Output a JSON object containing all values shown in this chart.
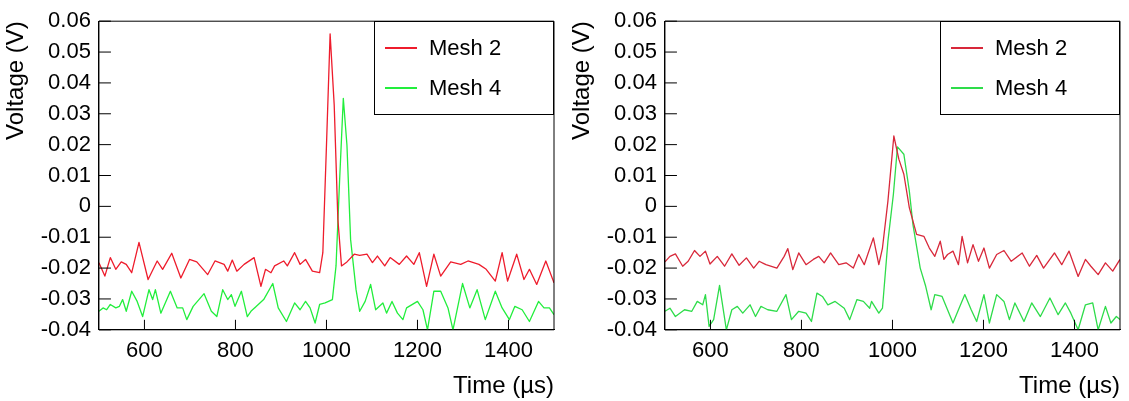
{
  "chart_data": [
    {
      "type": "line",
      "xlabel": "Time (µs)",
      "ylabel": "Voltage (V)",
      "xlim": [
        500,
        1500
      ],
      "xticks": [
        600,
        800,
        1000,
        1200,
        1400
      ],
      "ylim": [
        -0.04,
        0.06
      ],
      "yticks": [
        -0.04,
        -0.03,
        -0.02,
        -0.01,
        0,
        0.01,
        0.02,
        0.03,
        0.04,
        0.05,
        0.06
      ],
      "legend": "top right",
      "marker": "none",
      "series": [
        {
          "name": "Mesh 2",
          "color": "#ee1c2c",
          "x": [
            500,
            513,
            525,
            537,
            549,
            560,
            572,
            588,
            608,
            628,
            640,
            660,
            680,
            699,
            715,
            739,
            755,
            775,
            783,
            793,
            803,
            819,
            841,
            856,
            866,
            878,
            886,
            906,
            914,
            930,
            942,
            954,
            969,
            985,
            992,
            1000,
            1008,
            1017,
            1025,
            1033,
            1045,
            1061,
            1073,
            1089,
            1101,
            1112,
            1128,
            1140,
            1160,
            1176,
            1192,
            1204,
            1220,
            1236,
            1251,
            1273,
            1295,
            1311,
            1335,
            1351,
            1371,
            1386,
            1398,
            1418,
            1434,
            1446,
            1462,
            1482,
            1500
          ],
          "values": [
            -0.0183,
            -0.0226,
            -0.0166,
            -0.0204,
            -0.018,
            -0.0188,
            -0.0215,
            -0.0117,
            -0.0237,
            -0.0177,
            -0.0204,
            -0.0152,
            -0.0232,
            -0.0172,
            -0.018,
            -0.0221,
            -0.0177,
            -0.0188,
            -0.021,
            -0.0174,
            -0.021,
            -0.0188,
            -0.0166,
            -0.0259,
            -0.0204,
            -0.0215,
            -0.0193,
            -0.0177,
            -0.0193,
            -0.015,
            -0.0188,
            -0.0172,
            -0.021,
            -0.0215,
            -0.015,
            0.0198,
            0.0559,
            0.0328,
            -0.0041,
            -0.0193,
            -0.018,
            -0.0155,
            -0.0159,
            -0.0155,
            -0.0182,
            -0.0161,
            -0.0193,
            -0.0166,
            -0.0188,
            -0.0161,
            -0.0188,
            -0.015,
            -0.0259,
            -0.0155,
            -0.0226,
            -0.018,
            -0.0188,
            -0.0177,
            -0.0188,
            -0.0204,
            -0.0242,
            -0.015,
            -0.0242,
            -0.0155,
            -0.0237,
            -0.0204,
            -0.0253,
            -0.0177,
            -0.0248
          ]
        },
        {
          "name": "Mesh 4",
          "color": "#22ee3c",
          "x": [
            500,
            509,
            517,
            525,
            537,
            545,
            552,
            560,
            572,
            584,
            596,
            610,
            618,
            624,
            636,
            657,
            672,
            684,
            693,
            707,
            731,
            747,
            759,
            772,
            783,
            791,
            799,
            813,
            826,
            834,
            846,
            862,
            882,
            894,
            912,
            930,
            942,
            954,
            964,
            975,
            985,
            997,
            1013,
            1021,
            1029,
            1037,
            1045,
            1053,
            1065,
            1073,
            1085,
            1097,
            1108,
            1124,
            1132,
            1144,
            1156,
            1168,
            1176,
            1200,
            1212,
            1222,
            1236,
            1251,
            1267,
            1278,
            1299,
            1315,
            1331,
            1349,
            1371,
            1386,
            1402,
            1414,
            1430,
            1446,
            1466,
            1478,
            1490,
            1500
          ],
          "values": [
            -0.034,
            -0.0329,
            -0.0335,
            -0.0318,
            -0.0329,
            -0.0324,
            -0.0302,
            -0.034,
            -0.0275,
            -0.0308,
            -0.0357,
            -0.027,
            -0.0302,
            -0.027,
            -0.0346,
            -0.0275,
            -0.0329,
            -0.0329,
            -0.0367,
            -0.0324,
            -0.0283,
            -0.034,
            -0.0357,
            -0.027,
            -0.0302,
            -0.0286,
            -0.0324,
            -0.0275,
            -0.0357,
            -0.034,
            -0.0324,
            -0.0302,
            -0.025,
            -0.0329,
            -0.0373,
            -0.0313,
            -0.0335,
            -0.0308,
            -0.0329,
            -0.0378,
            -0.0318,
            -0.0313,
            -0.0302,
            -0.0193,
            0.0089,
            0.035,
            0.0198,
            -0.0107,
            -0.027,
            -0.034,
            -0.0308,
            -0.0253,
            -0.0335,
            -0.0313,
            -0.0346,
            -0.0308,
            -0.0346,
            -0.0367,
            -0.0329,
            -0.0308,
            -0.0335,
            -0.04,
            -0.0275,
            -0.0275,
            -0.0329,
            -0.04,
            -0.025,
            -0.0329,
            -0.027,
            -0.0367,
            -0.0275,
            -0.0329,
            -0.0367,
            -0.0324,
            -0.0335,
            -0.0373,
            -0.0308,
            -0.0329,
            -0.0329,
            -0.0351
          ]
        }
      ]
    },
    {
      "type": "line",
      "xlabel": "Time (µs)",
      "ylabel": "Voltage (V)",
      "xlim": [
        500,
        1500
      ],
      "xticks": [
        600,
        800,
        1000,
        1200,
        1400
      ],
      "ylim": [
        -0.04,
        0.06
      ],
      "yticks": [
        -0.04,
        -0.03,
        -0.02,
        -0.01,
        0,
        0.01,
        0.02,
        0.03,
        0.04,
        0.05,
        0.06
      ],
      "legend": "top right",
      "marker": "none",
      "series": [
        {
          "name": "Mesh 2",
          "color": "#d8283a",
          "x": [
            500,
            511,
            523,
            539,
            551,
            565,
            577,
            589,
            599,
            615,
            631,
            647,
            663,
            679,
            695,
            707,
            722,
            746,
            762,
            770,
            781,
            794,
            810,
            826,
            838,
            850,
            864,
            882,
            898,
            914,
            926,
            938,
            958,
            970,
            978,
            990,
            1003,
            1014,
            1025,
            1037,
            1053,
            1069,
            1081,
            1093,
            1105,
            1113,
            1121,
            1133,
            1145,
            1153,
            1165,
            1177,
            1189,
            1201,
            1213,
            1229,
            1245,
            1261,
            1285,
            1301,
            1317,
            1332,
            1356,
            1372,
            1388,
            1408,
            1424,
            1436,
            1452,
            1468,
            1484,
            1500
          ],
          "values": [
            -0.018,
            -0.0162,
            -0.0154,
            -0.0194,
            -0.0178,
            -0.0143,
            -0.0162,
            -0.0145,
            -0.0187,
            -0.0162,
            -0.0194,
            -0.0154,
            -0.0191,
            -0.0167,
            -0.02,
            -0.0178,
            -0.0189,
            -0.02,
            -0.0162,
            -0.0137,
            -0.0205,
            -0.0151,
            -0.0189,
            -0.0172,
            -0.0162,
            -0.0183,
            -0.0151,
            -0.0189,
            -0.0183,
            -0.02,
            -0.0156,
            -0.0189,
            -0.0102,
            -0.0189,
            -0.0135,
            0.0017,
            0.0228,
            0.0153,
            0.0104,
            -0.0004,
            -0.0091,
            -0.0097,
            -0.0135,
            -0.0162,
            -0.0113,
            -0.0172,
            -0.0156,
            -0.0145,
            -0.0189,
            -0.0097,
            -0.0183,
            -0.0124,
            -0.0178,
            -0.0135,
            -0.02,
            -0.0156,
            -0.0143,
            -0.0178,
            -0.0151,
            -0.0194,
            -0.0159,
            -0.02,
            -0.0151,
            -0.0189,
            -0.0145,
            -0.0227,
            -0.0172,
            -0.0194,
            -0.0221,
            -0.0183,
            -0.021,
            -0.0172
          ]
        },
        {
          "name": "Mesh 4",
          "color": "#2edc4a",
          "x": [
            500,
            511,
            523,
            543,
            559,
            571,
            583,
            589,
            597,
            607,
            620,
            635,
            647,
            659,
            671,
            687,
            699,
            711,
            726,
            746,
            766,
            778,
            794,
            810,
            822,
            834,
            846,
            858,
            874,
            894,
            906,
            922,
            936,
            950,
            954,
            970,
            978,
            990,
            1002,
            1011,
            1025,
            1037,
            1045,
            1061,
            1073,
            1085,
            1093,
            1109,
            1121,
            1133,
            1145,
            1159,
            1173,
            1185,
            1201,
            1213,
            1229,
            1245,
            1257,
            1269,
            1289,
            1306,
            1325,
            1346,
            1364,
            1380,
            1392,
            1408,
            1424,
            1440,
            1452,
            1468,
            1480,
            1492,
            1500
          ],
          "values": [
            -0.034,
            -0.033,
            -0.0357,
            -0.0335,
            -0.034,
            -0.0308,
            -0.0319,
            -0.0286,
            -0.0389,
            -0.0367,
            -0.0256,
            -0.04,
            -0.0335,
            -0.0324,
            -0.0346,
            -0.0319,
            -0.0357,
            -0.0324,
            -0.0335,
            -0.034,
            -0.0286,
            -0.0367,
            -0.034,
            -0.0346,
            -0.0373,
            -0.0281,
            -0.0292,
            -0.0319,
            -0.0308,
            -0.033,
            -0.0367,
            -0.0302,
            -0.0308,
            -0.033,
            -0.0308,
            -0.0346,
            -0.033,
            -0.0113,
            0.0039,
            0.0193,
            0.0169,
            0.005,
            -0.0059,
            -0.02,
            -0.0259,
            -0.0335,
            -0.0286,
            -0.0292,
            -0.0335,
            -0.0378,
            -0.0335,
            -0.0286,
            -0.0335,
            -0.0373,
            -0.0286,
            -0.0378,
            -0.0286,
            -0.0308,
            -0.0367,
            -0.0313,
            -0.0373,
            -0.0313,
            -0.0357,
            -0.0297,
            -0.0351,
            -0.0313,
            -0.0346,
            -0.04,
            -0.0319,
            -0.0313,
            -0.04,
            -0.0324,
            -0.0378,
            -0.0357,
            -0.0367
          ]
        }
      ]
    }
  ]
}
